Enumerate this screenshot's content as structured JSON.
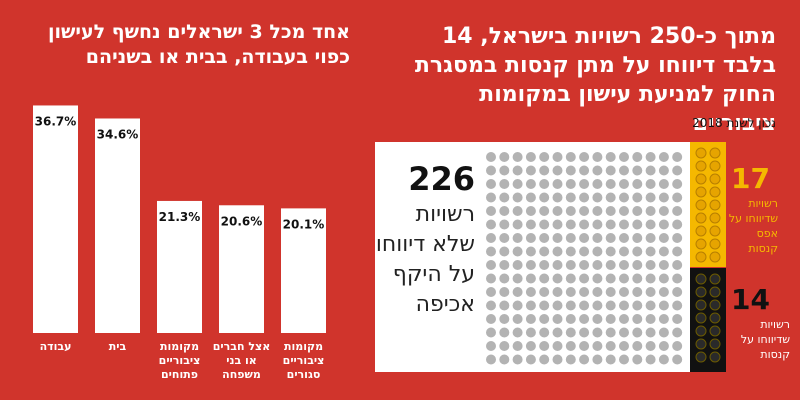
{
  "left_title": "אחד מכל 3 ישראלים נחשף לעישון כפוי בעבודה, בבית או בשניהם",
  "chart_data": {
    "type": "bar",
    "title": "אחד מכל 3 ישראלים נחשף לעישון כפוי בעבודה, בבית או בשניהם",
    "categories": [
      "עבודה",
      "בית",
      "מקומות ציבוריים פתוחים",
      "אצל חברים או בני משפחה",
      "מקומות ציבוריים סגורים"
    ],
    "values": [
      36.7,
      34.6,
      21.3,
      20.6,
      20.1
    ],
    "value_labels": [
      "36.7%",
      "34.6%",
      "21.3%",
      "20.6%",
      "20.1%"
    ],
    "category_lines": [
      [
        "עבודה"
      ],
      [
        "בית"
      ],
      [
        "מקומות",
        "ציבוריים",
        "פתוחים"
      ],
      [
        "אצל חברים",
        "או בני",
        "משפחה"
      ],
      [
        "מקומות",
        "ציבוריים",
        "סגורים"
      ]
    ],
    "ylim": [
      0,
      40
    ],
    "colors": {
      "bar": "#ffffff",
      "background": "#d0342c"
    }
  },
  "right_title": "מתוך כ-250 רשויות בישראל, 14 בלבד דיווחו על מתן קנסות במסגרת החוק למניעת עישון במקומות ציבוריים",
  "right_subtitle": "נכון לשנת 2018",
  "big_number": "226",
  "big_number_desc": "רשויות שלא דיווחו על היקף אכיפה",
  "zero_fines": {
    "number": "17",
    "desc": "רשויות שדיווחו על אפס קנסות"
  },
  "fines": {
    "number": "14",
    "desc": "רשויות שדיווחו על קנסות"
  },
  "colors": {
    "yellow": "#f5b800",
    "gray_dot": "#b3b3b3",
    "black": "#111111"
  }
}
